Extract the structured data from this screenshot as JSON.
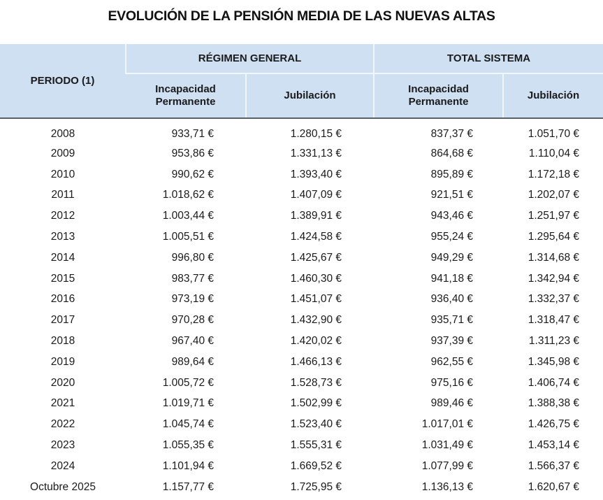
{
  "title": "EVOLUCIÓN DE LA PENSIÓN MEDIA DE LAS NUEVAS ALTAS",
  "header": {
    "periodo": "PERIODO (1)",
    "groups": [
      {
        "label": "RÉGIMEN GENERAL",
        "sub": [
          "Incapacidad Permanente",
          "Jubilación"
        ]
      },
      {
        "label": "TOTAL SISTEMA",
        "sub": [
          "Incapacidad Permanente",
          "Jubilación"
        ]
      }
    ],
    "sub_lines": {
      "ip_line1": "Incapacidad",
      "ip_line2": "Permanente",
      "jub": "Jubilación"
    }
  },
  "colors": {
    "header_bg": "#cfe0f3",
    "header_border": "#5a5f66",
    "text": "#1a1a1a"
  },
  "rows": [
    {
      "periodo": "2008",
      "rg_ip": "933,71 €",
      "rg_jub": "1.280,15 €",
      "ts_ip": "837,37 €",
      "ts_jub": "1.051,70 €"
    },
    {
      "periodo": "2009",
      "rg_ip": "953,86 €",
      "rg_jub": "1.331,13 €",
      "ts_ip": "864,68 €",
      "ts_jub": "1.110,04 €"
    },
    {
      "periodo": "2010",
      "rg_ip": "990,62 €",
      "rg_jub": "1.393,40 €",
      "ts_ip": "895,89 €",
      "ts_jub": "1.172,18 €"
    },
    {
      "periodo": "2011",
      "rg_ip": "1.018,62 €",
      "rg_jub": "1.407,09 €",
      "ts_ip": "921,51 €",
      "ts_jub": "1.202,07 €"
    },
    {
      "periodo": "2012",
      "rg_ip": "1.003,44 €",
      "rg_jub": "1.389,91 €",
      "ts_ip": "943,46 €",
      "ts_jub": "1.251,97 €"
    },
    {
      "periodo": "2013",
      "rg_ip": "1.005,51 €",
      "rg_jub": "1.424,58 €",
      "ts_ip": "955,24 €",
      "ts_jub": "1.295,64 €"
    },
    {
      "periodo": "2014",
      "rg_ip": "996,80 €",
      "rg_jub": "1.425,67 €",
      "ts_ip": "949,29 €",
      "ts_jub": "1.314,68 €"
    },
    {
      "periodo": "2015",
      "rg_ip": "983,77 €",
      "rg_jub": "1.460,30 €",
      "ts_ip": "941,18 €",
      "ts_jub": "1.342,94 €"
    },
    {
      "periodo": "2016",
      "rg_ip": "973,19 €",
      "rg_jub": "1.451,07 €",
      "ts_ip": "936,40 €",
      "ts_jub": "1.332,37 €"
    },
    {
      "periodo": "2017",
      "rg_ip": "970,28 €",
      "rg_jub": "1.432,90 €",
      "ts_ip": "935,71 €",
      "ts_jub": "1.318,47 €"
    },
    {
      "periodo": "2018",
      "rg_ip": "967,40 €",
      "rg_jub": "1.420,02 €",
      "ts_ip": "937,39 €",
      "ts_jub": "1.311,23 €"
    },
    {
      "periodo": "2019",
      "rg_ip": "989,64 €",
      "rg_jub": "1.466,13 €",
      "ts_ip": "962,55 €",
      "ts_jub": "1.345,98 €"
    },
    {
      "periodo": "2020",
      "rg_ip": "1.005,72 €",
      "rg_jub": "1.528,73 €",
      "ts_ip": "975,16 €",
      "ts_jub": "1.406,74 €"
    },
    {
      "periodo": "2021",
      "rg_ip": "1.019,71 €",
      "rg_jub": "1.502,99 €",
      "ts_ip": "989,46 €",
      "ts_jub": "1.388,38 €"
    },
    {
      "periodo": "2022",
      "rg_ip": "1.045,74 €",
      "rg_jub": "1.523,40 €",
      "ts_ip": "1.017,01 €",
      "ts_jub": "1.426,75 €"
    },
    {
      "periodo": "2023",
      "rg_ip": "1.055,35 €",
      "rg_jub": "1.555,31 €",
      "ts_ip": "1.031,49 €",
      "ts_jub": "1.453,14 €"
    },
    {
      "periodo": "2024",
      "rg_ip": "1.101,94 €",
      "rg_jub": "1.669,52 €",
      "ts_ip": "1.077,99 €",
      "ts_jub": "1.566,37 €"
    },
    {
      "periodo": "Octubre 2025",
      "rg_ip": "1.157,77 €",
      "rg_jub": "1.725,95 €",
      "ts_ip": "1.136,13 €",
      "ts_jub": "1.620,67 €"
    }
  ]
}
